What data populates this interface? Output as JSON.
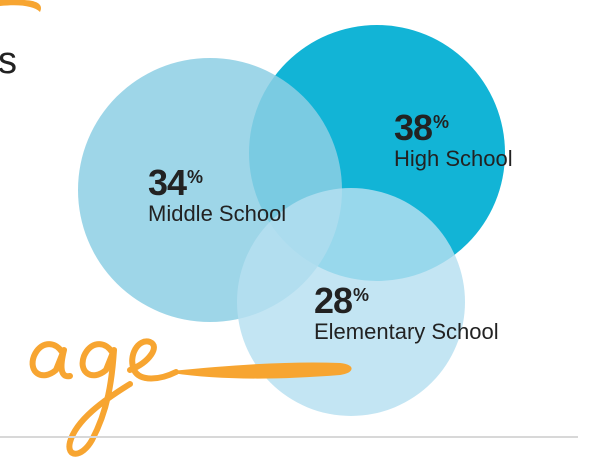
{
  "partial_heading_letter": "s",
  "decorative_script_text": "age",
  "colors": {
    "high_school": "#12b4d6",
    "middle_school": "#8dcfe4",
    "elementary_school": "#b6dff0",
    "accent_orange": "#f7a531",
    "text": "#222222",
    "rule": "#d8d8d8"
  },
  "chart_data": {
    "type": "venn",
    "unit": "%",
    "series": [
      {
        "name": "High School",
        "value": 38
      },
      {
        "name": "Middle School",
        "value": 34
      },
      {
        "name": "Elementary School",
        "value": 28
      }
    ]
  },
  "labels": {
    "high_school": {
      "value": "38",
      "unit": "%",
      "name": "High School"
    },
    "middle_school": {
      "value": "34",
      "unit": "%",
      "name": "Middle School"
    },
    "elementary_school": {
      "value": "28",
      "unit": "%",
      "name": "Elementary School"
    }
  }
}
